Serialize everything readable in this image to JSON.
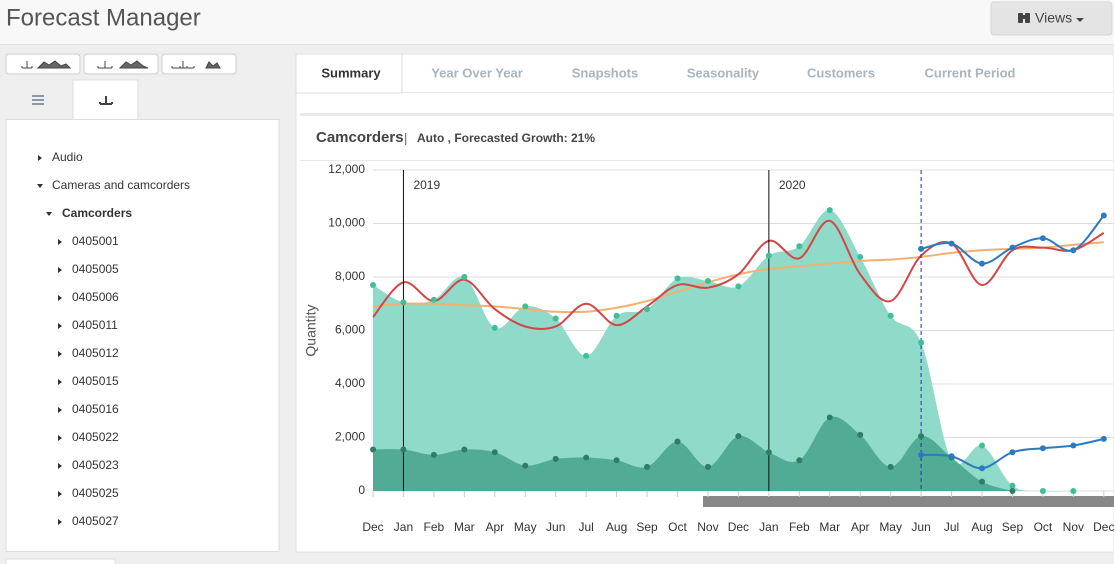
{
  "header": {
    "title": "Forecast Manager",
    "views": "Views"
  },
  "sidebar": {
    "tree": [
      "Audio",
      "Cameras and camcorders",
      "Camcorders",
      "0405001",
      "0405005",
      "0405006",
      "0405011",
      "0405012",
      "0405015",
      "0405016",
      "0405022",
      "0405023",
      "0405025",
      "0405027"
    ]
  },
  "tabs": [
    "Summary",
    "Year Over Year",
    "Snapshots",
    "Seasonality",
    "Customers",
    "Current Period"
  ],
  "panel": {
    "title": "Camcorders",
    "separator": "|",
    "subtitle": "Auto , Forecasted Growth: 21%"
  },
  "chart_data": {
    "type": "line",
    "y_label": "Quantity",
    "categories": [
      "Dec",
      "Jan",
      "Feb",
      "Mar",
      "Apr",
      "May",
      "Jun",
      "Jul",
      "Aug",
      "Sep",
      "Oct",
      "Nov",
      "Dec",
      "Jan",
      "Feb",
      "Mar",
      "Apr",
      "May",
      "Jun",
      "Jul",
      "Aug",
      "Sep",
      "Oct",
      "Nov",
      "Dec"
    ],
    "ylim": [
      0,
      12000
    ],
    "yticks": [
      0,
      {
        "value": 2000,
        "label": "2,000"
      },
      {
        "value": 4000,
        "label": "4,000"
      },
      {
        "value": 6000,
        "label": "6,000"
      },
      {
        "value": 8000,
        "label": "8,000"
      },
      {
        "value": 10000,
        "label": "10,000"
      },
      {
        "value": 12000,
        "label": "12,000"
      }
    ],
    "grid": true,
    "annotations": [
      {
        "text": "2019",
        "x": 1
      },
      {
        "text": "2020",
        "x": 13
      }
    ],
    "forecast_start": 18,
    "series": [
      {
        "type": "area",
        "color": "#8fdac8",
        "marker_color": "#3dbf98",
        "markers": true,
        "values": [
          7700,
          7050,
          7150,
          8000,
          6100,
          6900,
          6450,
          5050,
          6550,
          6800,
          7950,
          7850,
          7650,
          8800,
          9150,
          10500,
          8750,
          6550,
          5550,
          1150,
          1700,
          200,
          0,
          0,
          null
        ]
      },
      {
        "type": "area",
        "color": "#52ab94",
        "marker_color": "#2e7d64",
        "markers": true,
        "values": [
          1550,
          1550,
          1350,
          1550,
          1450,
          950,
          1200,
          1250,
          1150,
          900,
          1850,
          900,
          2050,
          1450,
          1150,
          2750,
          2100,
          900,
          2050,
          1250,
          350,
          0,
          null,
          null,
          null
        ]
      },
      {
        "type": "line",
        "color": "#f4b070",
        "markers": false,
        "values": [
          6900,
          7000,
          7000,
          6950,
          6900,
          6800,
          6700,
          6700,
          6850,
          7100,
          7450,
          7800,
          8100,
          8300,
          8400,
          8500,
          8600,
          8650,
          8750,
          8900,
          9000,
          9050,
          9100,
          9200,
          9300
        ]
      },
      {
        "type": "line",
        "color": "#d64545",
        "markers": false,
        "values": [
          6500,
          7800,
          7100,
          7900,
          6800,
          6150,
          6150,
          7000,
          6200,
          6900,
          7700,
          7600,
          8100,
          9350,
          8700,
          10100,
          8100,
          7100,
          8800,
          9250,
          7700,
          9000,
          9100,
          9000,
          9650
        ]
      },
      {
        "type": "line",
        "color": "#2b7bc0",
        "markers": true,
        "values": [
          null,
          null,
          null,
          null,
          null,
          null,
          null,
          null,
          null,
          null,
          null,
          null,
          null,
          null,
          null,
          null,
          null,
          null,
          9050,
          9250,
          8500,
          9100,
          9450,
          9000,
          10300
        ]
      },
      {
        "type": "line",
        "color": "#2b7bc0",
        "markers": true,
        "values": [
          null,
          null,
          null,
          null,
          null,
          null,
          null,
          null,
          null,
          null,
          null,
          null,
          null,
          null,
          null,
          null,
          null,
          null,
          1350,
          1300,
          850,
          1450,
          1600,
          1700,
          1950
        ]
      }
    ]
  }
}
